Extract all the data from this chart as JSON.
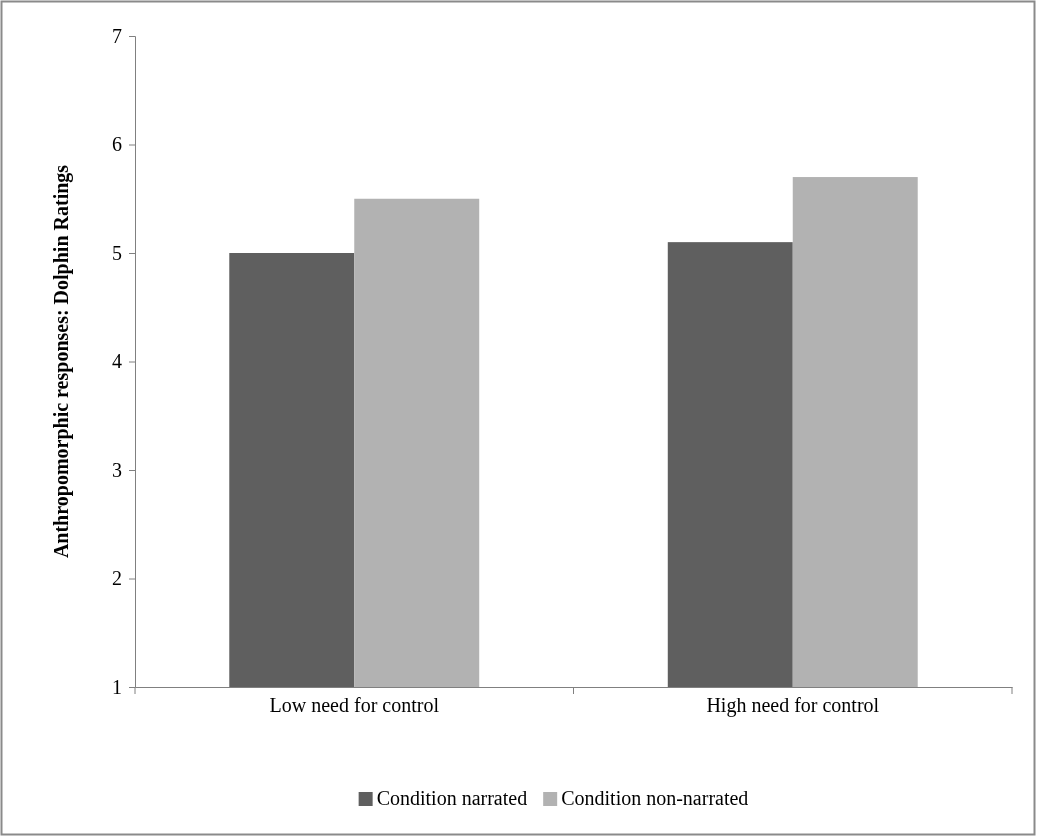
{
  "chart_data": {
    "type": "bar",
    "ylabel": "Anthropomorphic responses: Dolphin Ratings",
    "categories": [
      "Low need for control",
      "High need for control"
    ],
    "series": [
      {
        "name": "Condition narrated",
        "color": "#5f5f5f",
        "values": [
          5.0,
          5.1
        ]
      },
      {
        "name": "Condition non-narrated",
        "color": "#b2b2b2",
        "values": [
          5.5,
          5.7
        ]
      }
    ],
    "ylim": [
      1,
      7
    ],
    "yticks": [
      1,
      2,
      3,
      4,
      5,
      6,
      7
    ],
    "grid": false,
    "legend": "bottom"
  }
}
